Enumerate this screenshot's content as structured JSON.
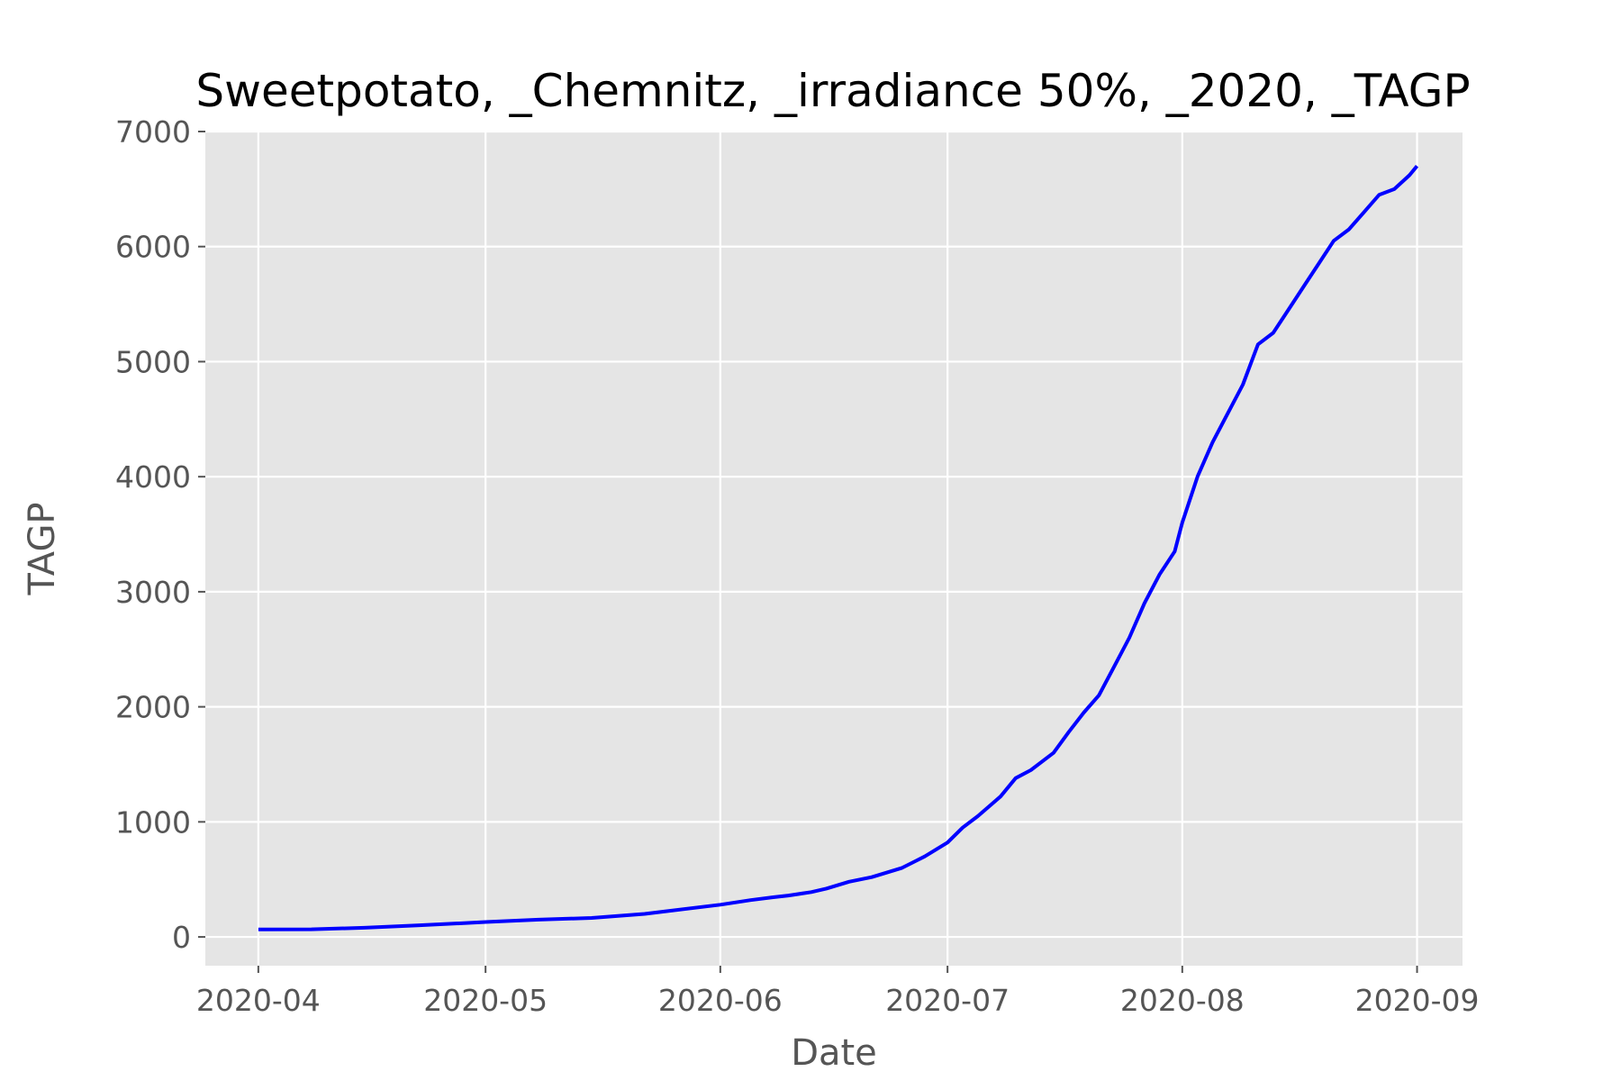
{
  "chart_data": {
    "type": "line",
    "title": "Sweetpotato, _Chemnitz, _irradiance 50%, _2020, _TAGP",
    "xlabel": "Date",
    "ylabel": "TAGP",
    "xlim": [
      "2020-03-25",
      "2020-09-07"
    ],
    "ylim": [
      -250,
      7000
    ],
    "x_ticks": [
      "2020-04",
      "2020-05",
      "2020-06",
      "2020-07",
      "2020-08",
      "2020-09"
    ],
    "y_ticks": [
      0,
      1000,
      2000,
      3000,
      4000,
      5000,
      6000,
      7000
    ],
    "grid": true,
    "background": "#e5e5e5",
    "series": [
      {
        "color": "#0000ff",
        "x": [
          "2020-04-01",
          "2020-04-08",
          "2020-04-15",
          "2020-04-22",
          "2020-05-01",
          "2020-05-08",
          "2020-05-15",
          "2020-05-22",
          "2020-06-01",
          "2020-06-05",
          "2020-06-08",
          "2020-06-10",
          "2020-06-13",
          "2020-06-15",
          "2020-06-18",
          "2020-06-21",
          "2020-06-25",
          "2020-06-28",
          "2020-07-01",
          "2020-07-03",
          "2020-07-05",
          "2020-07-08",
          "2020-07-10",
          "2020-07-12",
          "2020-07-15",
          "2020-07-17",
          "2020-07-19",
          "2020-07-21",
          "2020-07-23",
          "2020-07-25",
          "2020-07-27",
          "2020-07-29",
          "2020-07-31",
          "2020-08-01",
          "2020-08-03",
          "2020-08-05",
          "2020-08-07",
          "2020-08-09",
          "2020-08-11",
          "2020-08-13",
          "2020-08-15",
          "2020-08-17",
          "2020-08-19",
          "2020-08-21",
          "2020-08-23",
          "2020-08-25",
          "2020-08-27",
          "2020-08-29",
          "2020-08-31",
          "2020-09-01"
        ],
        "y": [
          65,
          66,
          80,
          100,
          130,
          150,
          165,
          200,
          280,
          320,
          345,
          360,
          390,
          420,
          480,
          520,
          600,
          700,
          820,
          950,
          1050,
          1220,
          1380,
          1450,
          1600,
          1780,
          1950,
          2100,
          2350,
          2600,
          2900,
          3150,
          3350,
          3600,
          4000,
          4300,
          4550,
          4800,
          5150,
          5250,
          5450,
          5650,
          5850,
          6050,
          6150,
          6300,
          6450,
          6500,
          6620,
          6700
        ]
      }
    ]
  }
}
